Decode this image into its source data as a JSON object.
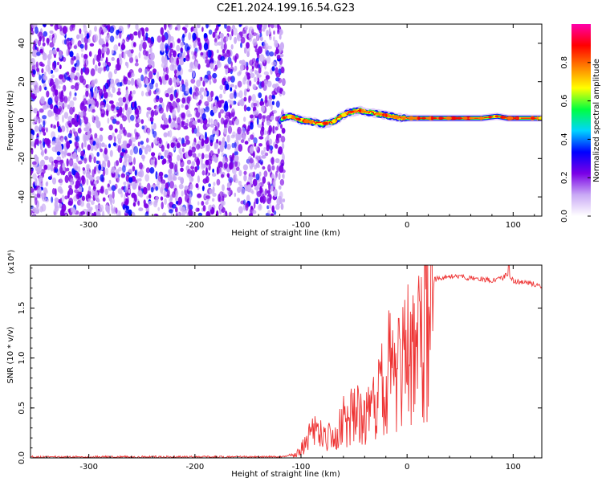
{
  "title": "C2E1.2024.199.16.54.G23",
  "chart_data": [
    {
      "type": "heatmap",
      "xlabel": "Height of straight line (km)",
      "ylabel": "Frequency (Hz)",
      "xlim": [
        -355,
        127
      ],
      "ylim": [
        -50,
        50
      ],
      "xticks": [
        -300,
        -200,
        -100,
        0,
        100
      ],
      "xtick_labels": [
        "-300",
        "-200",
        "-100",
        "0",
        "100"
      ],
      "yticks": [
        -40,
        -20,
        0,
        20,
        40
      ],
      "ytick_labels": [
        "-40",
        "-20",
        "0",
        "20",
        "40"
      ],
      "noise_region_x": [
        -355,
        -116
      ],
      "signal_track": {
        "x": [
          -118,
          -110,
          -100,
          -90,
          -80,
          -70,
          -62,
          -55,
          -45,
          -35,
          -25,
          -15,
          -5,
          0,
          10,
          30,
          50,
          70,
          85,
          95,
          105,
          127
        ],
        "y": [
          1,
          2,
          0,
          -1,
          -2,
          -1,
          2,
          4,
          5,
          4,
          3,
          2,
          1,
          1,
          1,
          1,
          1,
          1,
          2,
          1,
          1,
          1
        ]
      },
      "colorbar": {
        "label": "Normalized spectral amplitude",
        "range": [
          0,
          1
        ],
        "ticks": [
          0.0,
          0.2,
          0.4,
          0.6,
          0.8
        ],
        "tick_labels": [
          "0.0",
          "0.2",
          "0.4",
          "0.6",
          "0.8"
        ],
        "colors": [
          "#ffffff",
          "#c9a9f5",
          "#7a00e6",
          "#0000ff",
          "#00d4ff",
          "#00ff40",
          "#ffff00",
          "#ff8000",
          "#ff0000",
          "#ff00aa"
        ]
      },
      "grid": false
    },
    {
      "type": "line",
      "xlabel": "Height of straight line (km)",
      "ylabel": "SNR (10 * v/v)",
      "y_multiplier": "(x10⁴)",
      "xlim": [
        -355,
        127
      ],
      "ylim": [
        0,
        1.93
      ],
      "xticks": [
        -300,
        -200,
        -100,
        0,
        100
      ],
      "xtick_labels": [
        "-300",
        "-200",
        "-100",
        "0",
        "100"
      ],
      "yticks": [
        0.0,
        0.5,
        1.0,
        1.5
      ],
      "ytick_labels": [
        "0.0",
        "0.5",
        "1.0",
        "1.5"
      ],
      "series": [
        {
          "color": "#ee3333",
          "x": [
            -355,
            -300,
            -250,
            -200,
            -150,
            -120,
            -105,
            -100,
            -95,
            -90,
            -85,
            -80,
            -75,
            -70,
            -65,
            -60,
            -55,
            -50,
            -45,
            -40,
            -35,
            -30,
            -25,
            -20,
            -15,
            -10,
            -5,
            0,
            5,
            10,
            15,
            20,
            25,
            30,
            40,
            50,
            60,
            70,
            80,
            90,
            95,
            100,
            110,
            120,
            127
          ],
          "y": [
            0.01,
            0.01,
            0.01,
            0.01,
            0.01,
            0.01,
            0.04,
            0.12,
            0.22,
            0.3,
            0.35,
            0.3,
            0.28,
            0.25,
            0.32,
            0.55,
            0.45,
            0.8,
            0.55,
            0.65,
            0.6,
            0.75,
            0.85,
            1.1,
            1.2,
            1.15,
            1.3,
            1.35,
            1.45,
            1.6,
            1.7,
            1.75,
            1.78,
            1.8,
            1.82,
            1.81,
            1.8,
            1.79,
            1.78,
            1.8,
            1.85,
            1.77,
            1.76,
            1.74,
            1.72
          ]
        }
      ],
      "grid": false
    }
  ]
}
